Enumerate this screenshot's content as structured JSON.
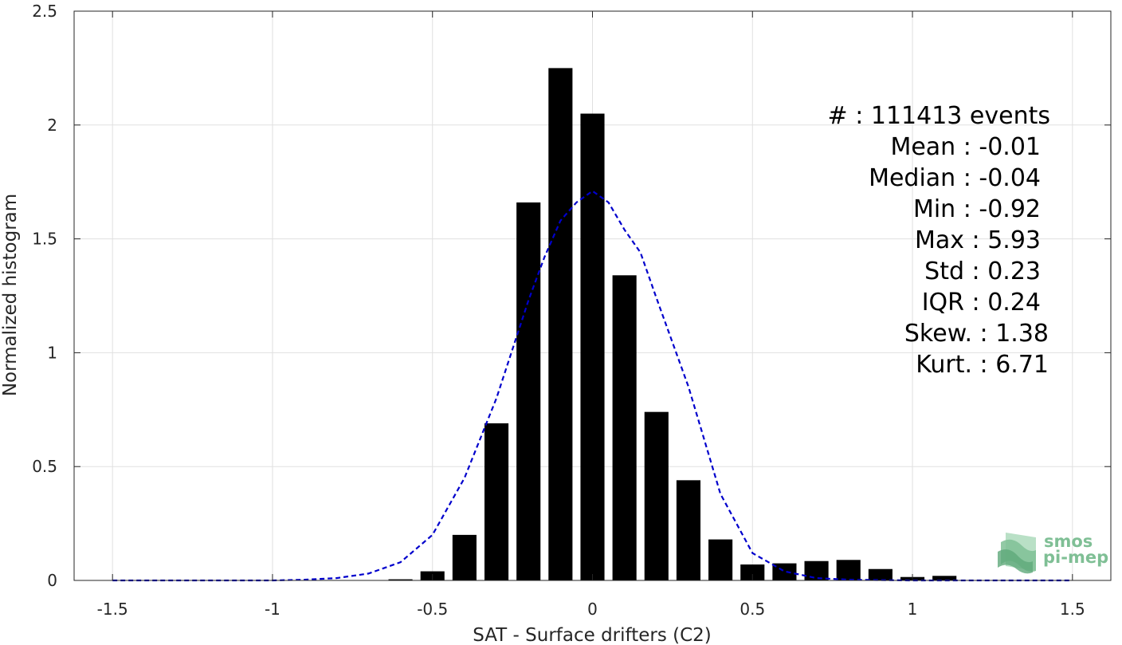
{
  "chart_data": {
    "type": "bar",
    "xlabel": "SAT - Surface drifters (C2)",
    "ylabel": "Normalized histogram",
    "xlim": [
      -1.62,
      1.62
    ],
    "ylim": [
      0,
      2.5
    ],
    "grid": true,
    "x_ticks": [
      "-1.5",
      "-1",
      "-0.5",
      "0",
      "0.5",
      "1",
      "1.5"
    ],
    "y_ticks": [
      "0",
      "0.5",
      "1",
      "1.5",
      "2",
      "2.5"
    ],
    "bar_width": 0.075,
    "bars": [
      {
        "x": -0.6,
        "y": 0.005
      },
      {
        "x": -0.5,
        "y": 0.04
      },
      {
        "x": -0.4,
        "y": 0.2
      },
      {
        "x": -0.3,
        "y": 0.69
      },
      {
        "x": -0.2,
        "y": 1.66
      },
      {
        "x": -0.1,
        "y": 2.25
      },
      {
        "x": 0.0,
        "y": 2.05
      },
      {
        "x": 0.1,
        "y": 1.34
      },
      {
        "x": 0.2,
        "y": 0.74
      },
      {
        "x": 0.3,
        "y": 0.44
      },
      {
        "x": 0.4,
        "y": 0.18
      },
      {
        "x": 0.5,
        "y": 0.07
      },
      {
        "x": 0.6,
        "y": 0.075
      },
      {
        "x": 0.7,
        "y": 0.085
      },
      {
        "x": 0.8,
        "y": 0.09
      },
      {
        "x": 0.9,
        "y": 0.05
      },
      {
        "x": 1.0,
        "y": 0.015
      },
      {
        "x": 1.1,
        "y": 0.02
      }
    ],
    "fit_curve": {
      "style": "dashed",
      "color": "#0000cc",
      "x": [
        -1.5,
        -1.2,
        -1.0,
        -0.9,
        -0.8,
        -0.7,
        -0.6,
        -0.5,
        -0.4,
        -0.3,
        -0.2,
        -0.15,
        -0.1,
        -0.05,
        0.0,
        0.05,
        0.1,
        0.15,
        0.2,
        0.3,
        0.4,
        0.5,
        0.6,
        0.7,
        0.8,
        1.0,
        1.2,
        1.5
      ],
      "y": [
        0.0,
        0.0,
        0.0,
        0.003,
        0.01,
        0.03,
        0.08,
        0.2,
        0.45,
        0.8,
        1.23,
        1.42,
        1.58,
        1.66,
        1.71,
        1.66,
        1.54,
        1.44,
        1.24,
        0.85,
        0.38,
        0.12,
        0.04,
        0.01,
        0.003,
        0.0,
        0.0,
        0.0
      ]
    },
    "bar_color": "#000000"
  },
  "stats": [
    {
      "text": "#  : 111413 events"
    },
    {
      "text": "Mean : -0.01"
    },
    {
      "text": "Median : -0.04"
    },
    {
      "text": "Min : -0.92"
    },
    {
      "text": "Max : 5.93"
    },
    {
      "text": "Std : 0.23"
    },
    {
      "text": "IQR : 0.24"
    },
    {
      "text": "Skew. : 1.38"
    },
    {
      "text": "Kurt. : 6.71"
    }
  ],
  "logo": {
    "line1": "smos",
    "line2": "pi-mep",
    "color": "#7fbf95"
  }
}
